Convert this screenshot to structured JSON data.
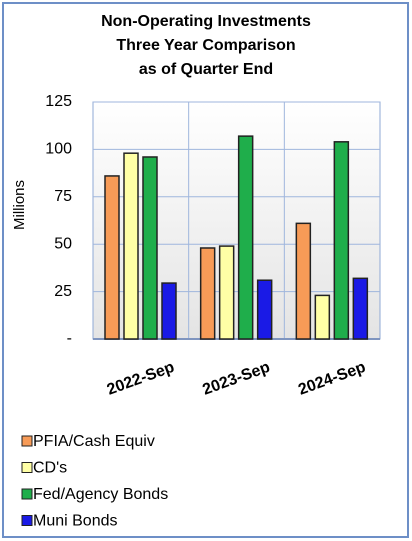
{
  "chart_data": {
    "type": "bar",
    "title": [
      "Non-Operating Investments",
      "Three Year Comparison",
      "as of Quarter End"
    ],
    "y_label": "Millions",
    "categories": [
      "2022-Sep",
      "2023-Sep",
      "2024-Sep"
    ],
    "series": [
      {
        "name": "PFIA/Cash Equiv",
        "color": "#f79b57",
        "values": [
          86,
          48,
          61
        ]
      },
      {
        "name": "CD's",
        "color": "#ffffa6",
        "values": [
          98,
          49,
          23
        ]
      },
      {
        "name": "Fed/Agency Bonds",
        "color": "#1fae4b",
        "values": [
          96,
          107,
          104
        ]
      },
      {
        "name": "Muni Bonds",
        "color": "#1a1ae6",
        "values": [
          29.5,
          31,
          32
        ]
      }
    ],
    "ylim": [
      0,
      125
    ],
    "yticks": [
      {
        "value": 0,
        "label": "-"
      },
      25,
      50,
      75,
      100,
      125
    ],
    "grid": true
  }
}
